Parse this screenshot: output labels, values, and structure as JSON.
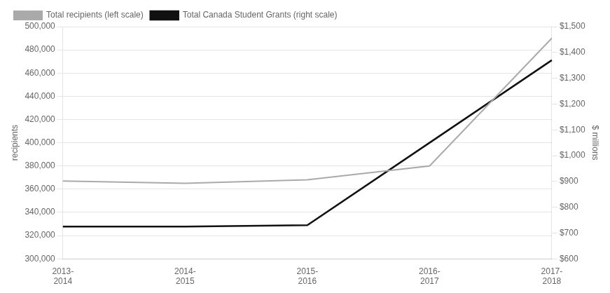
{
  "chart_data": {
    "type": "line",
    "categories": [
      "2013-\n2014",
      "2014-\n2015",
      "2015-\n2016",
      "2016-\n2017",
      "2017-\n2018"
    ],
    "series": [
      {
        "name": "Total recipients (left scale)",
        "color": "#aaaaaa",
        "axis": "y",
        "values": [
          367000,
          365000,
          368000,
          380000,
          490000
        ]
      },
      {
        "name": "Total Canada Student Grants (right scale)",
        "color": "#111111",
        "axis": "y2",
        "values": [
          725,
          725,
          730,
          1050,
          1370
        ]
      }
    ],
    "ylabel": "recipients",
    "y2label": "$ millions",
    "ylim": [
      300000,
      500000
    ],
    "yticks": [
      {
        "value": 300000,
        "label": "300,000"
      },
      {
        "value": 320000,
        "label": "320,000"
      },
      {
        "value": 340000,
        "label": "340,000"
      },
      {
        "value": 360000,
        "label": "360,000"
      },
      {
        "value": 380000,
        "label": "380,000"
      },
      {
        "value": 400000,
        "label": "400,000"
      },
      {
        "value": 420000,
        "label": "420,000"
      },
      {
        "value": 440000,
        "label": "440,000"
      },
      {
        "value": 460000,
        "label": "460,000"
      },
      {
        "value": 480000,
        "label": "480,000"
      },
      {
        "value": 500000,
        "label": "500,000"
      }
    ],
    "y2lim": [
      600,
      1500
    ],
    "y2ticks": [
      {
        "value": 600,
        "label": "$600"
      },
      {
        "value": 700,
        "label": "$700"
      },
      {
        "value": 800,
        "label": "$800"
      },
      {
        "value": 900,
        "label": "$900"
      },
      {
        "value": 1000,
        "label": "$1,000"
      },
      {
        "value": 1100,
        "label": "$1,100"
      },
      {
        "value": 1200,
        "label": "$1,200"
      },
      {
        "value": 1300,
        "label": "$1,300"
      },
      {
        "value": 1400,
        "label": "$1,400"
      },
      {
        "value": 1500,
        "label": "$1,500"
      }
    ],
    "grid": true,
    "legend": "upper left"
  }
}
